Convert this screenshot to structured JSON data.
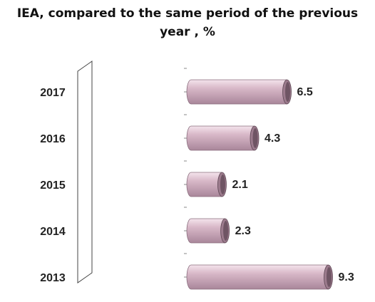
{
  "chart_data": {
    "type": "bar",
    "orientation": "horizontal",
    "title_lines": [
      "IEA, compared to the same period of the previous",
      "year , %"
    ],
    "categories": [
      "2017",
      "2016",
      "2015",
      "2014",
      "2013"
    ],
    "values": [
      6.5,
      4.3,
      2.1,
      2.3,
      9.3
    ],
    "data_labels": [
      "6.5",
      "4.3",
      "2.1",
      "2.3",
      "9.3"
    ],
    "xlabel": "",
    "ylabel": "",
    "xlim": [
      0,
      10
    ],
    "grid": false,
    "legend": "none",
    "bar_style": "3d-cylinder",
    "colors": {
      "bar_light": "#f4e4ec",
      "bar_mid": "#d8b8c8",
      "bar_dark": "#a9869a",
      "bar_end": "#9c7b8d",
      "bar_end_inner": "#6f5564",
      "label_text": "#222222",
      "axis_tick": "#888888"
    }
  }
}
